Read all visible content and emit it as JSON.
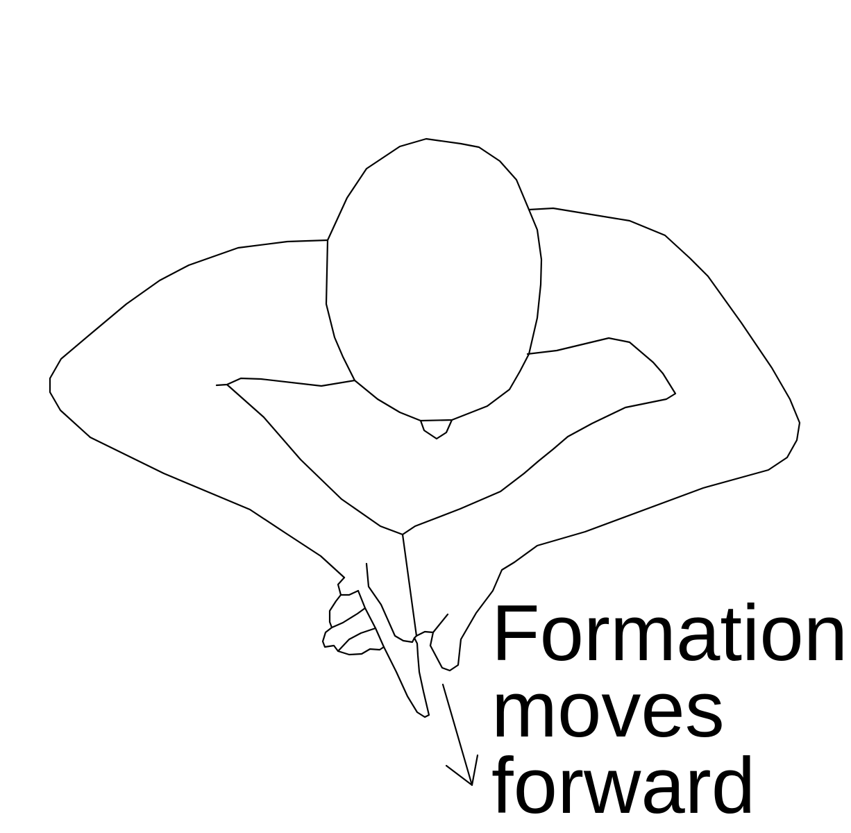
{
  "caption": {
    "lines": [
      "Formation",
      "moves",
      "forward"
    ]
  },
  "figure": {
    "subject": "person-hands-formation",
    "movement": "forward",
    "line_color": "#000000",
    "background": "#ffffff"
  }
}
